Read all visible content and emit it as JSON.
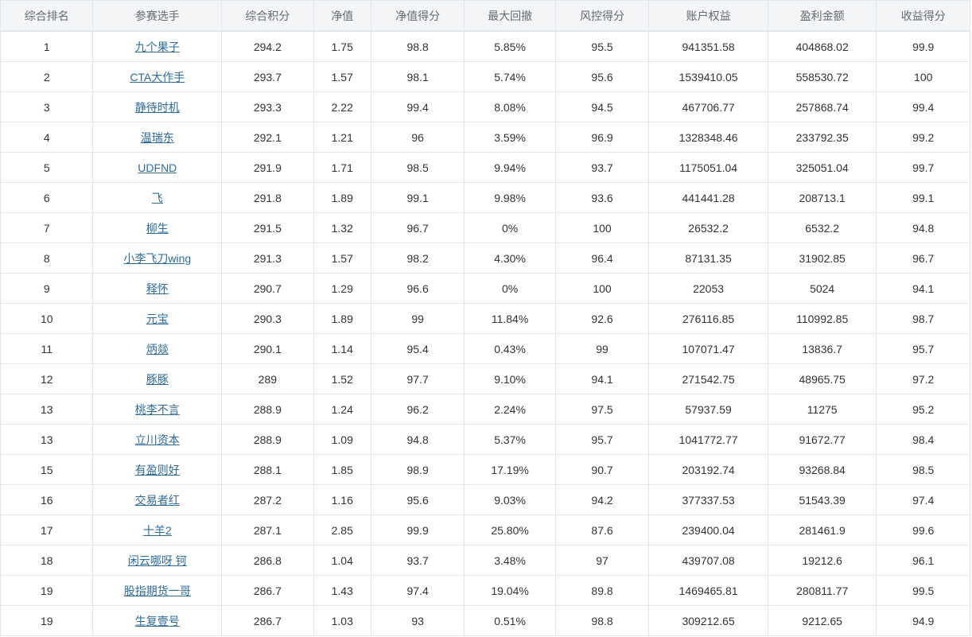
{
  "columns": [
    "综合排名",
    "参赛选手",
    "综合积分",
    "净值",
    "净值得分",
    "最大回撤",
    "风控得分",
    "账户权益",
    "盈利金额",
    "收益得分"
  ],
  "colors": {
    "link": "#2d6c9c",
    "header_bg": "#f4f5f7",
    "border": "#e3e6ea"
  },
  "rows": [
    [
      "1",
      "九个果子",
      "294.2",
      "1.75",
      "98.8",
      "5.85%",
      "95.5",
      "941351.58",
      "404868.02",
      "99.9"
    ],
    [
      "2",
      "CTA大作手",
      "293.7",
      "1.57",
      "98.1",
      "5.74%",
      "95.6",
      "1539410.05",
      "558530.72",
      "100"
    ],
    [
      "3",
      "静待时机",
      "293.3",
      "2.22",
      "99.4",
      "8.08%",
      "94.5",
      "467706.77",
      "257868.74",
      "99.4"
    ],
    [
      "4",
      "温瑞东",
      "292.1",
      "1.21",
      "96",
      "3.59%",
      "96.9",
      "1328348.46",
      "233792.35",
      "99.2"
    ],
    [
      "5",
      "UDFND",
      "291.9",
      "1.71",
      "98.5",
      "9.94%",
      "93.7",
      "1175051.04",
      "325051.04",
      "99.7"
    ],
    [
      "6",
      "飞",
      "291.8",
      "1.89",
      "99.1",
      "9.98%",
      "93.6",
      "441441.28",
      "208713.1",
      "99.1"
    ],
    [
      "7",
      "柳生",
      "291.5",
      "1.32",
      "96.7",
      "0%",
      "100",
      "26532.2",
      "6532.2",
      "94.8"
    ],
    [
      "8",
      "小李飞刀wing",
      "291.3",
      "1.57",
      "98.2",
      "4.30%",
      "96.4",
      "87131.35",
      "31902.85",
      "96.7"
    ],
    [
      "9",
      "释怀",
      "290.7",
      "1.29",
      "96.6",
      "0%",
      "100",
      "22053",
      "5024",
      "94.1"
    ],
    [
      "10",
      "元宝",
      "290.3",
      "1.89",
      "99",
      "11.84%",
      "92.6",
      "276116.85",
      "110992.85",
      "98.7"
    ],
    [
      "11",
      "炳燚",
      "290.1",
      "1.14",
      "95.4",
      "0.43%",
      "99",
      "107071.47",
      "13836.7",
      "95.7"
    ],
    [
      "12",
      "豚豚",
      "289",
      "1.52",
      "97.7",
      "9.10%",
      "94.1",
      "271542.75",
      "48965.75",
      "97.2"
    ],
    [
      "13",
      "桃李不言",
      "288.9",
      "1.24",
      "96.2",
      "2.24%",
      "97.5",
      "57937.59",
      "11275",
      "95.2"
    ],
    [
      "13",
      "立川资本",
      "288.9",
      "1.09",
      "94.8",
      "5.37%",
      "95.7",
      "1041772.77",
      "91672.77",
      "98.4"
    ],
    [
      "15",
      "有盈则好",
      "288.1",
      "1.85",
      "98.9",
      "17.19%",
      "90.7",
      "203192.74",
      "93268.84",
      "98.5"
    ],
    [
      "16",
      "交易者红",
      "287.2",
      "1.16",
      "95.6",
      "9.03%",
      "94.2",
      "377337.53",
      "51543.39",
      "97.4"
    ],
    [
      "17",
      "十羊2",
      "287.1",
      "2.85",
      "99.9",
      "25.80%",
      "87.6",
      "239400.04",
      "281461.9",
      "99.6"
    ],
    [
      "18",
      "闲云哪呀 钶",
      "286.8",
      "1.04",
      "93.7",
      "3.48%",
      "97",
      "439707.08",
      "19212.6",
      "96.1"
    ],
    [
      "19",
      "股指期货一哥",
      "286.7",
      "1.43",
      "97.4",
      "19.04%",
      "89.8",
      "1469465.81",
      "280811.77",
      "99.5"
    ],
    [
      "19",
      "生复壹号",
      "286.7",
      "1.03",
      "93",
      "0.51%",
      "98.8",
      "309212.65",
      "9212.65",
      "94.9"
    ]
  ]
}
